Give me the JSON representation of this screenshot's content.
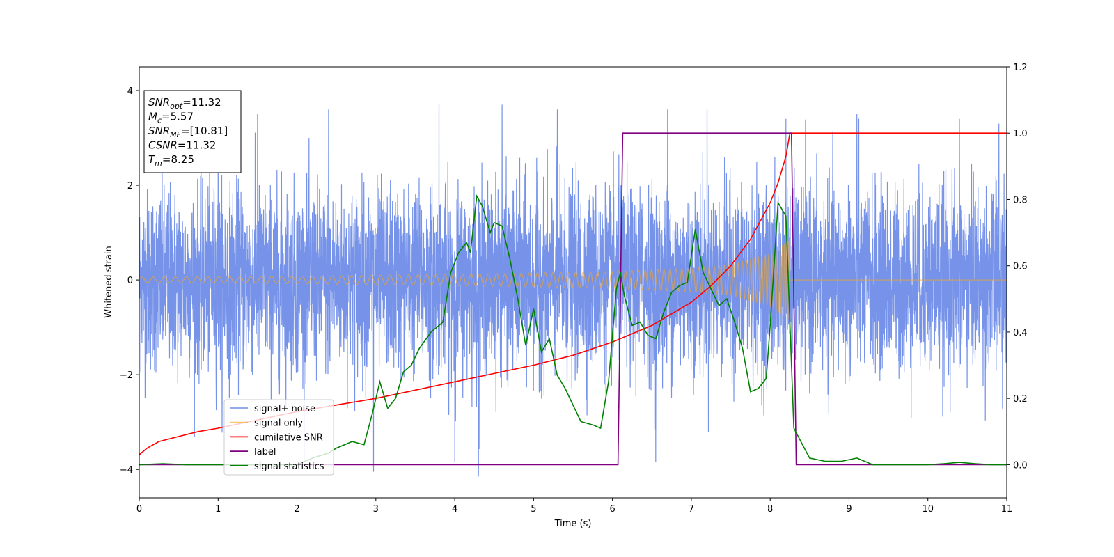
{
  "chart_data": {
    "type": "line",
    "xlabel": "Time (s)",
    "ylabel": "Whitened strain",
    "xlim": [
      0,
      11
    ],
    "ylim": [
      -4.6,
      4.5
    ],
    "y2lim": [
      -0.1,
      1.2
    ],
    "x_ticks": [
      "0",
      "1",
      "2",
      "3",
      "4",
      "5",
      "6",
      "7",
      "8",
      "9",
      "10",
      "11"
    ],
    "y_ticks": [
      "-4",
      "-2",
      "0",
      "2",
      "4"
    ],
    "y2_ticks": [
      "0.0",
      "0.2",
      "0.4",
      "0.6",
      "0.8",
      "1.0",
      "1.2"
    ],
    "grid": false,
    "legend_position": "lower-left",
    "info_box": {
      "lines": [
        {
          "base": "SNR",
          "sub": "opt",
          "value": "=11.32"
        },
        {
          "base": "M",
          "sub": "c",
          "value": "=5.57"
        },
        {
          "base": "SNR",
          "sub": "MF",
          "value": "=[10.81]"
        },
        {
          "base": "CSNR",
          "sub": "",
          "value": "=11.32"
        },
        {
          "base": "T",
          "sub": "m",
          "value": "=8.25"
        }
      ]
    },
    "series": [
      {
        "name": "signal+ noise",
        "color": "#4169e1",
        "axis": "left",
        "kind": "noise",
        "std": 0.95,
        "x_range": [
          0,
          11
        ],
        "spikes": [
          [
            1.0,
            2.9
          ],
          [
            1.5,
            3.5
          ],
          [
            2.4,
            3.6
          ],
          [
            3.8,
            3.7
          ],
          [
            4.3,
            4.1
          ],
          [
            4.6,
            3.7
          ],
          [
            5.3,
            3.6
          ],
          [
            6.7,
            3.6
          ],
          [
            7.2,
            3.6
          ],
          [
            8.2,
            3.4
          ],
          [
            9.1,
            3.5
          ],
          [
            10.4,
            3.4
          ],
          [
            10.9,
            3.3
          ],
          [
            2.97,
            -4.05
          ],
          [
            4.3,
            -4.15
          ],
          [
            4.0,
            -3.85
          ],
          [
            6.55,
            -3.85
          ]
        ]
      },
      {
        "name": "signal only",
        "color": "#f5a623",
        "axis": "left",
        "kind": "chirp",
        "x_range": [
          0,
          8.25
        ],
        "amplitude": [
          [
            0,
            0.06
          ],
          [
            2,
            0.08
          ],
          [
            4,
            0.12
          ],
          [
            6,
            0.18
          ],
          [
            7,
            0.25
          ],
          [
            7.5,
            0.32
          ],
          [
            8.0,
            0.55
          ],
          [
            8.25,
            0.85
          ]
        ]
      },
      {
        "name": "cumilative SNR",
        "color": "#ff0000",
        "axis": "right",
        "kind": "line",
        "x": [
          0,
          0.1,
          0.25,
          0.5,
          0.75,
          1,
          1.5,
          2,
          2.5,
          3,
          3.5,
          4,
          4.5,
          5,
          5.5,
          6,
          6.5,
          7,
          7.25,
          7.5,
          7.75,
          8,
          8.1,
          8.2,
          8.25,
          9,
          10,
          11
        ],
        "values": [
          0.03,
          0.05,
          0.07,
          0.085,
          0.1,
          0.11,
          0.135,
          0.16,
          0.18,
          0.2,
          0.225,
          0.25,
          0.275,
          0.3,
          0.33,
          0.37,
          0.42,
          0.49,
          0.54,
          0.6,
          0.68,
          0.79,
          0.85,
          0.93,
          1.0,
          1.0,
          1.0,
          1.0
        ]
      },
      {
        "name": "label",
        "color": "#800080",
        "axis": "right",
        "kind": "line",
        "x": [
          0,
          6.07,
          6.13,
          8.27,
          8.33,
          11
        ],
        "values": [
          0.0,
          0.0,
          1.0,
          1.0,
          0.0,
          0.0
        ]
      },
      {
        "name": "signal statistics",
        "color": "#008000",
        "axis": "right",
        "kind": "line",
        "x": [
          0,
          0.3,
          0.6,
          1.0,
          1.5,
          2.0,
          2.2,
          2.4,
          2.5,
          2.7,
          2.85,
          2.95,
          3.05,
          3.15,
          3.25,
          3.35,
          3.45,
          3.55,
          3.7,
          3.85,
          3.95,
          4.05,
          4.15,
          4.2,
          4.28,
          4.35,
          4.45,
          4.5,
          4.6,
          4.7,
          4.8,
          4.9,
          5.0,
          5.1,
          5.2,
          5.3,
          5.4,
          5.5,
          5.6,
          5.75,
          5.85,
          5.95,
          6.05,
          6.1,
          6.15,
          6.25,
          6.35,
          6.45,
          6.55,
          6.65,
          6.75,
          6.85,
          6.95,
          7.05,
          7.15,
          7.25,
          7.35,
          7.45,
          7.55,
          7.65,
          7.75,
          7.85,
          7.95,
          8.0,
          8.1,
          8.2,
          8.3,
          8.5,
          8.7,
          8.9,
          9.1,
          9.3,
          9.5,
          9.7,
          10.0,
          10.2,
          10.4,
          10.6,
          10.8,
          11.0
        ],
        "values": [
          0.0,
          0.003,
          0.0,
          0.0,
          0.0,
          0.0,
          0.02,
          0.035,
          0.05,
          0.07,
          0.06,
          0.15,
          0.25,
          0.17,
          0.2,
          0.28,
          0.3,
          0.35,
          0.4,
          0.43,
          0.58,
          0.64,
          0.67,
          0.64,
          0.81,
          0.78,
          0.7,
          0.73,
          0.72,
          0.62,
          0.5,
          0.36,
          0.47,
          0.34,
          0.38,
          0.27,
          0.23,
          0.18,
          0.13,
          0.12,
          0.11,
          0.25,
          0.53,
          0.58,
          0.51,
          0.42,
          0.43,
          0.39,
          0.38,
          0.46,
          0.52,
          0.54,
          0.55,
          0.71,
          0.58,
          0.53,
          0.48,
          0.5,
          0.43,
          0.35,
          0.22,
          0.23,
          0.26,
          0.42,
          0.79,
          0.75,
          0.11,
          0.02,
          0.01,
          0.01,
          0.02,
          0.0,
          0.0,
          0.0,
          0.0,
          0.003,
          0.007,
          0.003,
          0.0,
          0.0
        ]
      }
    ]
  }
}
